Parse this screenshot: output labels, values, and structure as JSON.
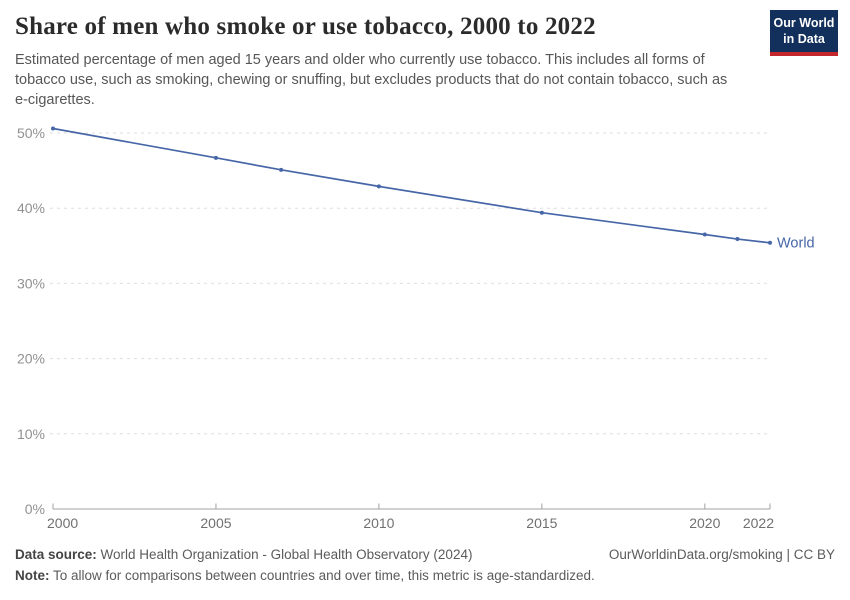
{
  "header": {
    "title": "Share of men who smoke or use tobacco, 2000 to 2022",
    "subtitle": "Estimated percentage of men aged 15 years and older who currently use tobacco. This includes all forms of tobacco use, such as smoking, chewing or snuffing, but excludes products that do not contain tobacco, such as e-cigarettes."
  },
  "logo": {
    "line1": "Our World",
    "line2": "in Data",
    "bg_color": "#12305b",
    "stripe_color": "#c3272b"
  },
  "chart_data": {
    "type": "line",
    "title": "Share of men who smoke or use tobacco, 2000 to 2022",
    "x": [
      2000,
      2005,
      2007,
      2010,
      2015,
      2020,
      2021,
      2022
    ],
    "series": [
      {
        "name": "World",
        "color": "#4666a8",
        "values": [
          50.6,
          46.7,
          45.1,
          42.9,
          39.4,
          36.5,
          35.9,
          35.4
        ]
      }
    ],
    "xlim": [
      2000,
      2022
    ],
    "ylim": [
      0,
      51
    ],
    "xticks": [
      2000,
      2005,
      2010,
      2015,
      2020,
      2022
    ],
    "yticks": [
      0,
      10,
      20,
      30,
      40,
      50
    ],
    "ytick_suffix": "%",
    "grid": "horizontal-dashed",
    "legend_position": "end-of-line-label",
    "end_label": "World"
  },
  "footer": {
    "datasource_label": "Data source:",
    "datasource_text": " World Health Organization - Global Health Observatory (2024)",
    "link_text": "OurWorldinData.org/smoking | CC BY",
    "note_label": "Note:",
    "note_text": " To allow for comparisons between countries and over time, this metric is age-standardized."
  }
}
